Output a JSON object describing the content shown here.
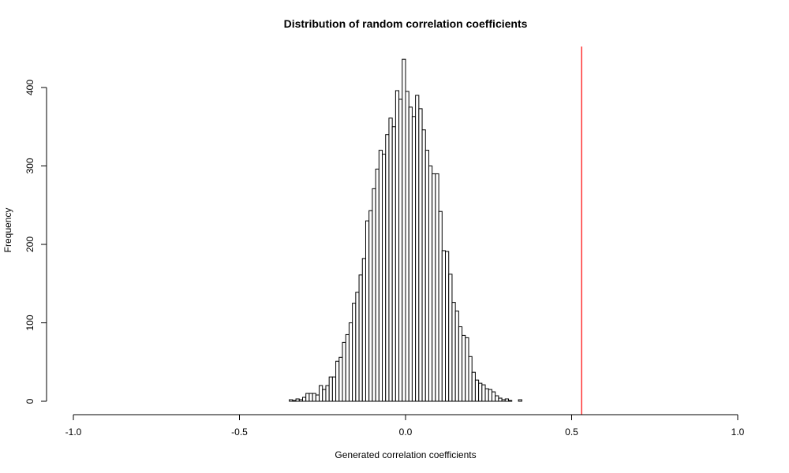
{
  "chart_data": {
    "type": "bar",
    "title": "Distribution of random correlation coefficients",
    "xlabel": "Generated correlation coefficients",
    "ylabel": "Frequency",
    "xlim": [
      -1.0,
      1.0
    ],
    "ylim": [
      0,
      450
    ],
    "x_ticks": [
      -1.0,
      -0.5,
      0.0,
      0.5,
      1.0
    ],
    "x_tick_labels": [
      "-1.0",
      "-0.5",
      "0.0",
      "0.5",
      "1.0"
    ],
    "y_ticks": [
      0,
      100,
      200,
      300,
      400
    ],
    "y_tick_labels": [
      "0",
      "100",
      "200",
      "300",
      "400"
    ],
    "bin_width": 0.01,
    "bin_start": -0.35,
    "values": [
      2,
      1,
      3,
      2,
      5,
      10,
      10,
      10,
      8,
      20,
      15,
      20,
      31,
      31,
      51,
      56,
      75,
      85,
      100,
      125,
      139,
      161,
      182,
      230,
      243,
      271,
      296,
      320,
      315,
      340,
      361,
      350,
      396,
      385,
      436,
      395,
      375,
      363,
      390,
      373,
      346,
      320,
      300,
      290,
      290,
      242,
      192,
      191,
      162,
      126,
      115,
      95,
      84,
      81,
      57,
      37,
      27,
      23,
      21,
      16,
      15,
      12,
      7,
      4,
      2,
      3,
      1,
      0,
      0,
      2
    ],
    "reference_line": {
      "x": 0.53,
      "color": "#ff0000"
    },
    "bar_fill": "#ffffff",
    "bar_stroke": "#000000",
    "grid": false
  }
}
